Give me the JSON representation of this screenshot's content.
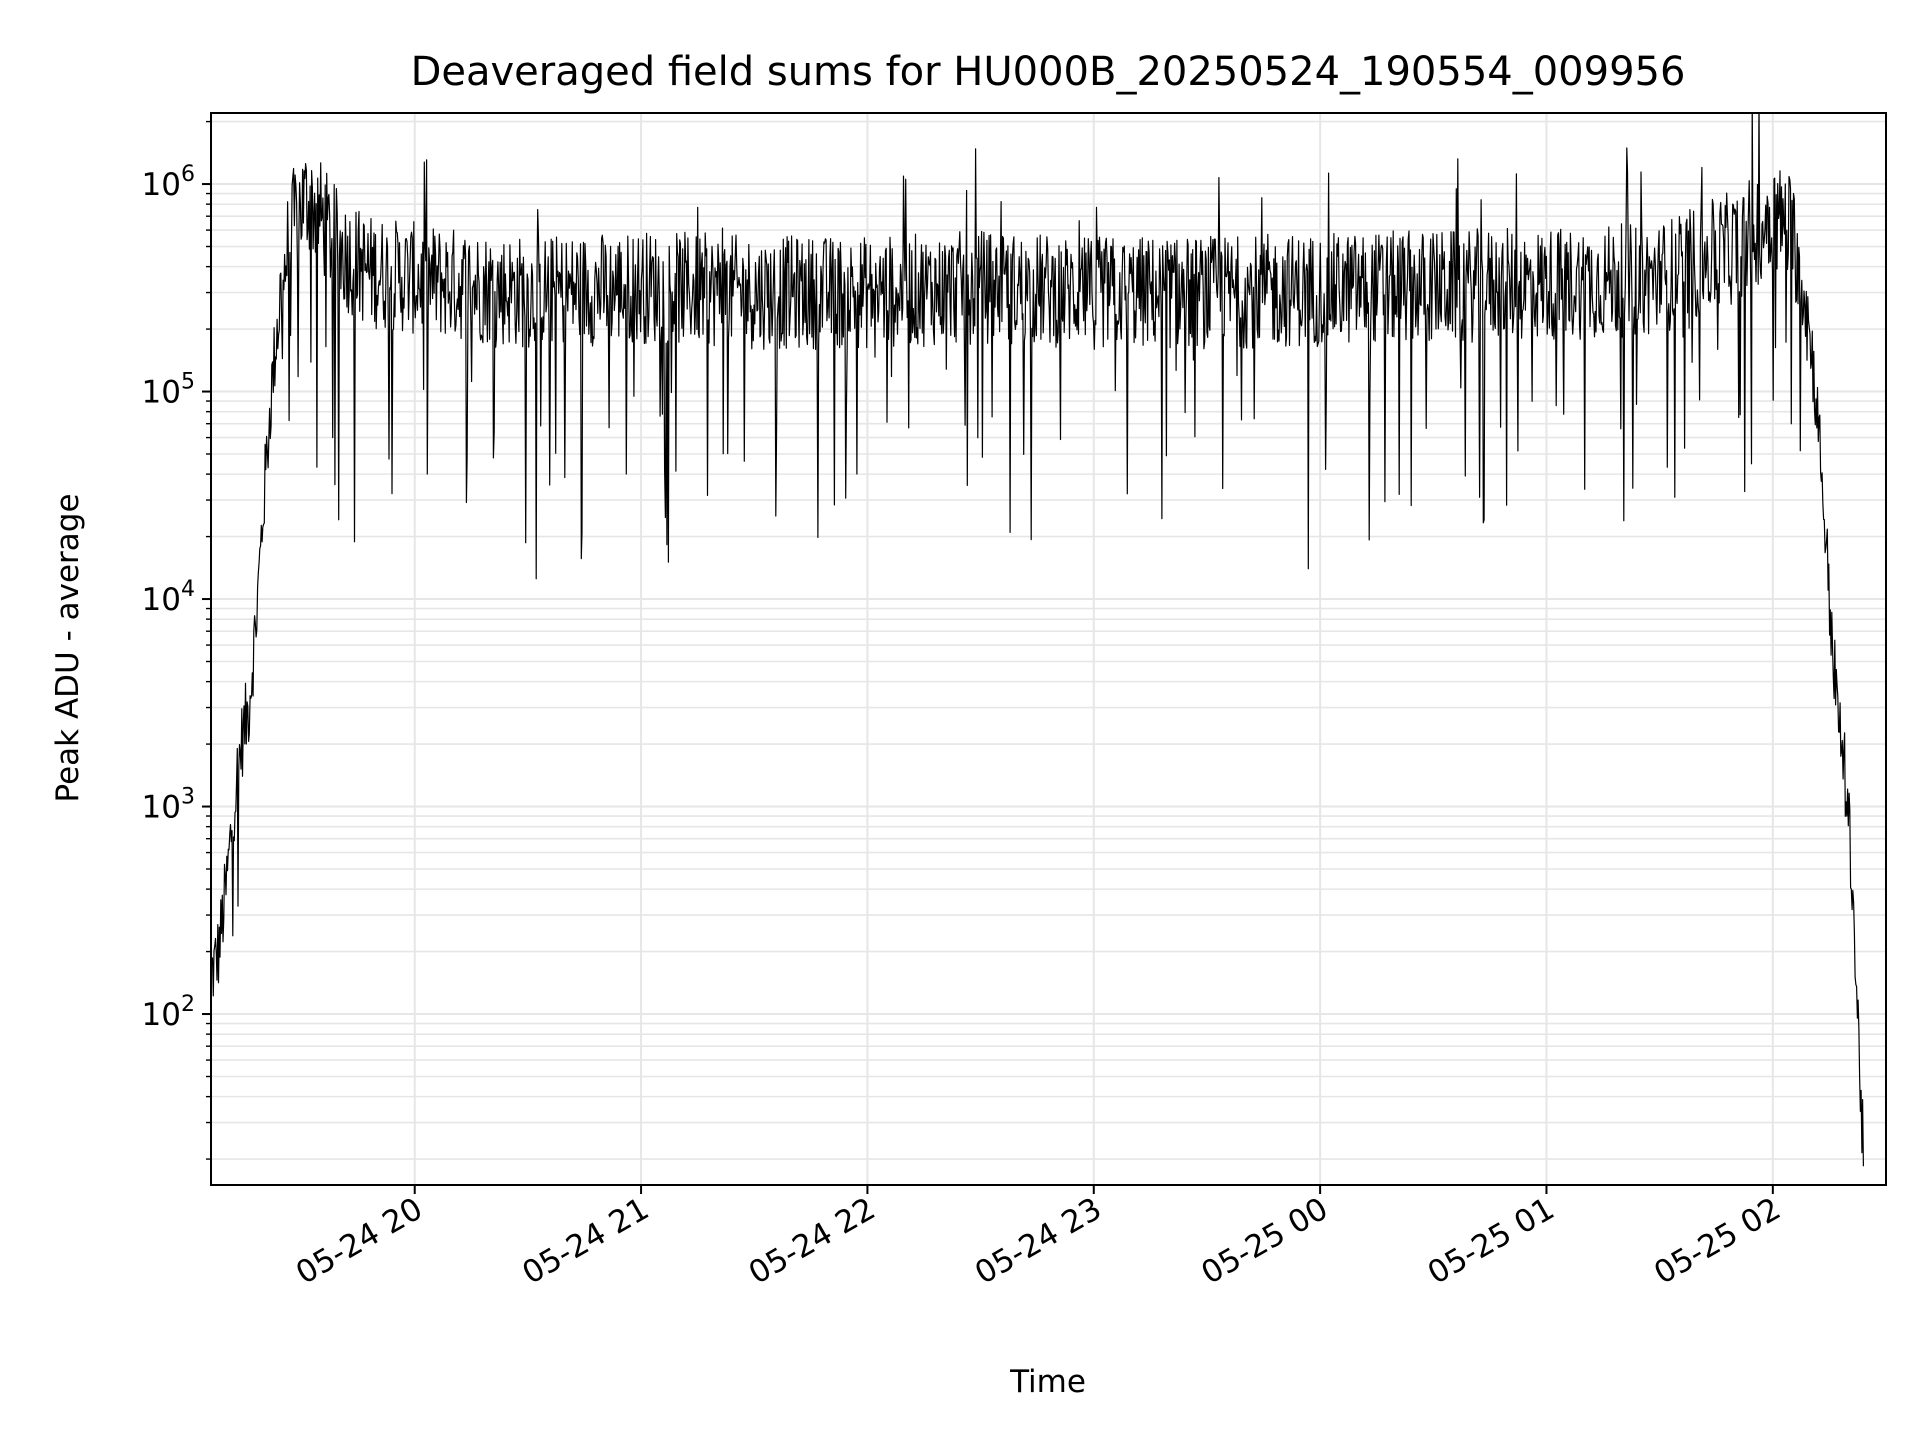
{
  "chart_data": {
    "type": "line",
    "title": "Deaveraged field sums for HU000B_20250524_190554_009956",
    "xlabel": "Time",
    "ylabel": "Peak ADU - average",
    "yscale": "log",
    "ylim": [
      15,
      2200000
    ],
    "xlim": [
      "2025-05-24 19:06",
      "2025-05-25 02:30"
    ],
    "grid": true,
    "legend": "none",
    "line_color": "#000000",
    "grid_color": "#e6e6e6",
    "x_ticks": [
      "2025-05-24 20:00",
      "2025-05-24 21:00",
      "2025-05-24 22:00",
      "2025-05-24 23:00",
      "2025-05-25 00:00",
      "2025-05-25 01:00",
      "2025-05-25 02:00"
    ],
    "x_tick_labels": [
      "05-24 20",
      "05-24 21",
      "05-24 22",
      "05-24 23",
      "05-25 00",
      "05-25 01",
      "05-25 02"
    ],
    "y_ticks": [
      100,
      1000,
      10000,
      100000,
      1000000
    ],
    "y_tick_labels": [
      {
        "base": "10",
        "exp": "2"
      },
      {
        "base": "10",
        "exp": "3"
      },
      {
        "base": "10",
        "exp": "4"
      },
      {
        "base": "10",
        "exp": "5"
      },
      {
        "base": "10",
        "exp": "6"
      }
    ],
    "series": [
      {
        "x": [
          "2025-05-24 19:06",
          "2025-05-24 19:08",
          "2025-05-24 19:10",
          "2025-05-24 19:12",
          "2025-05-24 19:14",
          "2025-05-24 19:16",
          "2025-05-24 19:18",
          "2025-05-24 19:20",
          "2025-05-24 19:22",
          "2025-05-24 19:24",
          "2025-05-24 19:26",
          "2025-05-24 19:28",
          "2025-05-24 19:30",
          "2025-05-24 19:32",
          "2025-05-24 19:35",
          "2025-05-24 19:38",
          "2025-05-24 19:42",
          "2025-05-24 19:48",
          "2025-05-24 20:00",
          "2025-05-24 20:30",
          "2025-05-24 21:00",
          "2025-05-24 21:30",
          "2025-05-24 22:00",
          "2025-05-24 22:30",
          "2025-05-24 23:00",
          "2025-05-24 23:30",
          "2025-05-25 00:00",
          "2025-05-25 00:30",
          "2025-05-25 01:00",
          "2025-05-25 01:30",
          "2025-05-25 01:50",
          "2025-05-25 02:00",
          "2025-05-25 02:05",
          "2025-05-25 02:08",
          "2025-05-25 02:11",
          "2025-05-25 02:13",
          "2025-05-25 02:15",
          "2025-05-25 02:17",
          "2025-05-25 02:19",
          "2025-05-25 02:21",
          "2025-05-25 02:22",
          "2025-05-25 02:23",
          "2025-05-25 02:24"
        ],
        "y": [
          150,
          200,
          400,
          1000,
          2000,
          3000,
          8000,
          30000,
          100000,
          250000,
          450000,
          650000,
          800000,
          850000,
          700000,
          550000,
          450000,
          380000,
          350000,
          300000,
          320000,
          300000,
          300000,
          320000,
          300000,
          300000,
          310000,
          320000,
          330000,
          350000,
          500000,
          700000,
          600000,
          350000,
          120000,
          40000,
          10000,
          3000,
          1500,
          500,
          150,
          60,
          20
        ],
        "noise": "high-frequency multiplicative jitter (about ×0.3 to ×3) with dips down to about 2e4 across the plateau"
      }
    ]
  }
}
